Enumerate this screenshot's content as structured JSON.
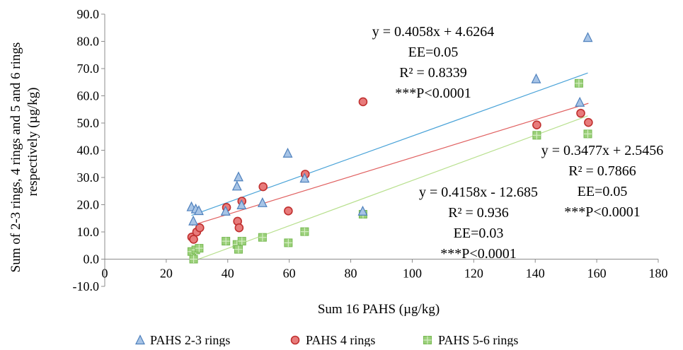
{
  "chart_data": {
    "type": "scatter",
    "xlabel": "Sum 16 PAHS (µg/kg)",
    "ylabel_lines": [
      "Sum of 2-3 rings, 4 rings and 5 and 6 rings",
      "respectively (µg/kg)"
    ],
    "xlim": [
      0,
      180
    ],
    "ylim": [
      -10,
      90
    ],
    "xticks": [
      0,
      20,
      40,
      60,
      80,
      100,
      120,
      140,
      160,
      180
    ],
    "yticks": [
      -10,
      0,
      10,
      20,
      30,
      40,
      50,
      60,
      70,
      80,
      90
    ],
    "xtick_labels": [
      "0",
      "20",
      "40",
      "60",
      "80",
      "100",
      "120",
      "140",
      "160",
      "180"
    ],
    "ytick_labels": [
      "-10.0",
      "0.0",
      "10.0",
      "20.0",
      "30.0",
      "40.0",
      "50.0",
      "60.0",
      "70.0",
      "80.0",
      "90.0"
    ],
    "grid": false,
    "legend_position": "bottom",
    "series": [
      {
        "name": "PAHS 2-3 rings",
        "marker": "triangle",
        "fill": "#a7c4e6",
        "stroke": "#4f81bd",
        "line_color": "#4aa3d8",
        "slope": 0.4058,
        "intercept": 4.6264,
        "points": [
          [
            28.2,
            19.2
          ],
          [
            28.8,
            14.0
          ],
          [
            29.6,
            18.4
          ],
          [
            30.6,
            17.8
          ],
          [
            39.3,
            17.6
          ],
          [
            43.0,
            26.8
          ],
          [
            43.5,
            30.2
          ],
          [
            44.5,
            19.9
          ],
          [
            51.3,
            20.7
          ],
          [
            59.5,
            38.9
          ],
          [
            65.0,
            29.7
          ],
          [
            83.9,
            17.6
          ],
          [
            140.3,
            66.2
          ],
          [
            154.5,
            57.6
          ],
          [
            157.1,
            81.4
          ]
        ],
        "annotation": [
          "y = 0.4058x  + 4.6264",
          "EE=0.05",
          "R² = 0.8339",
          "***P<0.0001"
        ]
      },
      {
        "name": "PAHS 4 rings",
        "marker": "circle",
        "fill": "#e87b7b",
        "stroke": "#c0302f",
        "line_color": "#e06060",
        "slope": 0.3477,
        "intercept": 2.5456,
        "points": [
          [
            28.3,
            8.1
          ],
          [
            28.9,
            7.3
          ],
          [
            29.9,
            10.0
          ],
          [
            30.9,
            11.5
          ],
          [
            39.6,
            19.0
          ],
          [
            43.2,
            13.9
          ],
          [
            43.7,
            11.5
          ],
          [
            44.6,
            21.3
          ],
          [
            51.5,
            26.6
          ],
          [
            59.7,
            17.7
          ],
          [
            65.2,
            31.2
          ],
          [
            84.0,
            57.8
          ],
          [
            140.5,
            49.3
          ],
          [
            154.8,
            53.6
          ],
          [
            157.3,
            50.2
          ]
        ],
        "annotation": [
          "y = 0.3477x  + 2.5456",
          "R² = 0.7866",
          "EE=0.05",
          "***P<0.0001"
        ]
      },
      {
        "name": "PAHS 5-6 rings",
        "marker": "square",
        "fill": "#9bd07a",
        "stroke": "#76b852",
        "line_color": "#b8e08e",
        "slope": 0.4158,
        "intercept": -12.685,
        "points": [
          [
            28.3,
            2.8
          ],
          [
            28.9,
            0.0
          ],
          [
            29.6,
            3.4
          ],
          [
            30.7,
            4.0
          ],
          [
            39.4,
            6.6
          ],
          [
            43.0,
            5.4
          ],
          [
            43.5,
            3.6
          ],
          [
            44.6,
            6.6
          ],
          [
            51.3,
            8.0
          ],
          [
            59.7,
            6.0
          ],
          [
            65.0,
            10.1
          ],
          [
            84.0,
            16.5
          ],
          [
            140.5,
            45.5
          ],
          [
            154.2,
            64.6
          ],
          [
            157.1,
            46.0
          ]
        ],
        "annotation": [
          "y = 0.4158x  - 12.685",
          "R² = 0.936",
          "EE=0.03",
          "***P<0.0001"
        ]
      }
    ]
  }
}
